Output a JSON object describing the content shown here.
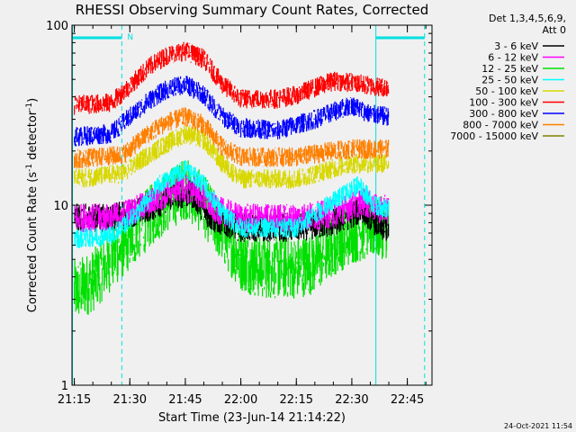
{
  "chart_data": {
    "type": "line",
    "title": "RHESSI Observing Summary Count Rates, Corrected",
    "xlabel": "Start Time (23-Jun-14 21:14:22)",
    "ylabel": "Corrected Count Rate (s⁻¹ detector⁻¹)",
    "ylabel_main": "Corrected Count Rate (s",
    "ylabel_sup1": "-1",
    "ylabel_mid": " detector",
    "ylabel_sup2": "-1",
    "ylabel_end": ")",
    "yscale": "log",
    "ylim": [
      1,
      100
    ],
    "xlim": [
      "21:14:22",
      "22:51:40"
    ],
    "x_ticks": [
      "21:15",
      "21:30",
      "21:45",
      "22:00",
      "22:15",
      "22:30",
      "22:45"
    ],
    "y_ticks": [
      "1",
      "10",
      "100"
    ],
    "legend_header": [
      "Det 1,3,4,5,6,9,",
      "Att 0"
    ],
    "legend_position": "right",
    "annotations": [
      {
        "text": "N",
        "color": "#00e0e0"
      },
      {
        "text": "24-Oct-2021 11:54"
      }
    ],
    "overlays": {
      "color": "#00e0e0",
      "night_solid_lines": [
        "21:14:30",
        "22:36:30"
      ],
      "night_dashed_lines": [
        "21:27:50",
        "22:49:40"
      ],
      "night_bars": [
        [
          "21:14:30",
          "21:27:50"
        ],
        [
          "22:36:30",
          "22:49:40"
        ]
      ]
    },
    "series": [
      {
        "name": "3 - 6 keV",
        "color": "#000000",
        "points": [
          [
            "21:15",
            8.5
          ],
          [
            "21:25",
            8.5
          ],
          [
            "21:30",
            9
          ],
          [
            "21:37",
            10
          ],
          [
            "21:42",
            11.5
          ],
          [
            "21:47",
            11.5
          ],
          [
            "21:52",
            8.5
          ],
          [
            "22:00",
            7.5
          ],
          [
            "22:15",
            7.5
          ],
          [
            "22:25",
            8
          ],
          [
            "22:33",
            9.5
          ],
          [
            "22:38",
            7.5
          ],
          [
            "22:40",
            7.5
          ]
        ]
      },
      {
        "name": "6 - 12 keV",
        "color": "#ff00ff",
        "points": [
          [
            "21:15",
            8.5
          ],
          [
            "21:25",
            8.5
          ],
          [
            "21:32",
            9.5
          ],
          [
            "21:38",
            11
          ],
          [
            "21:43",
            12.5
          ],
          [
            "21:48",
            12
          ],
          [
            "21:53",
            9.5
          ],
          [
            "22:00",
            8.5
          ],
          [
            "22:15",
            8.5
          ],
          [
            "22:25",
            9
          ],
          [
            "22:33",
            10.5
          ],
          [
            "22:37",
            9.5
          ],
          [
            "22:40",
            9.5
          ]
        ]
      },
      {
        "name": "12 - 25 keV",
        "color": "#00e000",
        "points": [
          [
            "21:15",
            3.3
          ],
          [
            "21:20",
            3.8
          ],
          [
            "21:25",
            5
          ],
          [
            "21:30",
            6.5
          ],
          [
            "21:35",
            8.5
          ],
          [
            "21:40",
            10.5
          ],
          [
            "21:45",
            12.5
          ],
          [
            "21:50",
            10
          ],
          [
            "21:55",
            7
          ],
          [
            "22:00",
            5
          ],
          [
            "22:05",
            4.5
          ],
          [
            "22:10",
            4.5
          ],
          [
            "22:15",
            4.5
          ],
          [
            "22:20",
            4.8
          ],
          [
            "22:25",
            6
          ],
          [
            "22:30",
            7
          ],
          [
            "22:35",
            7.5
          ],
          [
            "22:40",
            7.5
          ]
        ]
      },
      {
        "name": "25 - 50 keV",
        "color": "#00ffff",
        "points": [
          [
            "21:15",
            6.5
          ],
          [
            "21:25",
            6.8
          ],
          [
            "21:32",
            9
          ],
          [
            "21:38",
            13
          ],
          [
            "21:45",
            16
          ],
          [
            "21:50",
            13
          ],
          [
            "21:55",
            9
          ],
          [
            "22:00",
            7.5
          ],
          [
            "22:15",
            7.5
          ],
          [
            "22:22",
            9.5
          ],
          [
            "22:28",
            11.5
          ],
          [
            "22:32",
            13
          ],
          [
            "22:36",
            10
          ],
          [
            "22:40",
            9.5
          ]
        ]
      },
      {
        "name": "50 - 100 keV",
        "color": "#d8d800",
        "points": [
          [
            "21:15",
            14
          ],
          [
            "21:28",
            15
          ],
          [
            "21:35",
            19
          ],
          [
            "21:40",
            22
          ],
          [
            "21:45",
            25
          ],
          [
            "21:50",
            23
          ],
          [
            "21:55",
            17
          ],
          [
            "22:00",
            14
          ],
          [
            "22:15",
            14
          ],
          [
            "22:25",
            16
          ],
          [
            "22:30",
            17
          ],
          [
            "22:35",
            17
          ],
          [
            "22:40",
            17
          ]
        ]
      },
      {
        "name": "100 - 300 keV",
        "color": "#ff0000",
        "points": [
          [
            "21:15",
            36
          ],
          [
            "21:25",
            37
          ],
          [
            "21:30",
            46
          ],
          [
            "21:35",
            58
          ],
          [
            "21:40",
            68
          ],
          [
            "21:45",
            72
          ],
          [
            "21:50",
            65
          ],
          [
            "21:55",
            47
          ],
          [
            "22:00",
            39
          ],
          [
            "22:10",
            39
          ],
          [
            "22:15",
            41
          ],
          [
            "22:20",
            45
          ],
          [
            "22:25",
            49
          ],
          [
            "22:30",
            48
          ],
          [
            "22:35",
            46
          ],
          [
            "22:40",
            45
          ]
        ]
      },
      {
        "name": "300 - 800 keV",
        "color": "#0000ff",
        "points": [
          [
            "21:15",
            24
          ],
          [
            "21:25",
            25
          ],
          [
            "21:30",
            31
          ],
          [
            "21:35",
            38
          ],
          [
            "21:40",
            44
          ],
          [
            "21:45",
            47
          ],
          [
            "21:50",
            41
          ],
          [
            "21:55",
            31
          ],
          [
            "22:00",
            27
          ],
          [
            "22:10",
            26
          ],
          [
            "22:15",
            28
          ],
          [
            "22:20",
            30
          ],
          [
            "22:25",
            33
          ],
          [
            "22:30",
            36
          ],
          [
            "22:35",
            32
          ],
          [
            "22:40",
            31
          ]
        ]
      },
      {
        "name": "800 - 7000 keV",
        "color": "#ff8000",
        "points": [
          [
            "21:15",
            18
          ],
          [
            "21:28",
            19
          ],
          [
            "21:35",
            25
          ],
          [
            "21:40",
            29
          ],
          [
            "21:45",
            31
          ],
          [
            "21:50",
            28
          ],
          [
            "21:55",
            21
          ],
          [
            "22:00",
            18.5
          ],
          [
            "22:15",
            18.5
          ],
          [
            "22:25",
            20
          ],
          [
            "22:30",
            20.5
          ],
          [
            "22:35",
            20.5
          ],
          [
            "22:40",
            20.5
          ]
        ]
      },
      {
        "name": "7000 - 15000 keV",
        "color": "#808000",
        "points": []
      }
    ]
  }
}
